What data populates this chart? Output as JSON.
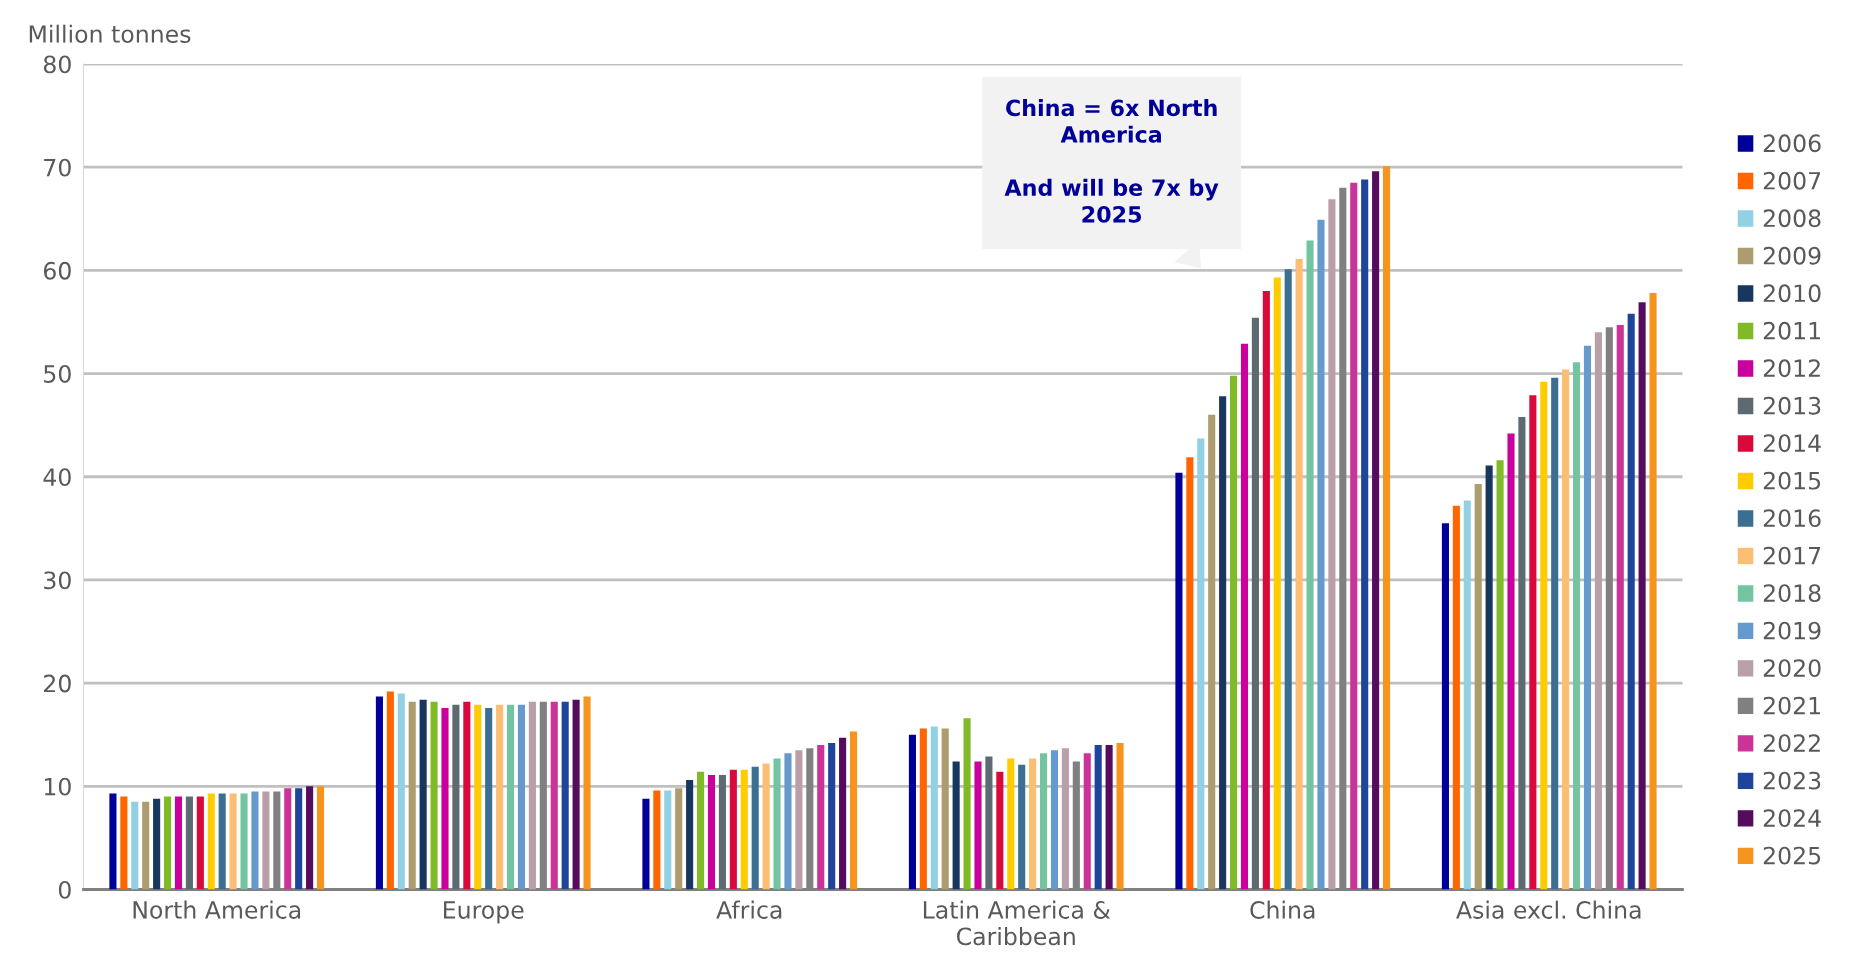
{
  "chart_data": {
    "type": "bar",
    "ylabel": "Million tonnes",
    "categories": [
      "North America",
      "Europe",
      "Africa",
      "Latin America &\nCaribbean",
      "China",
      "Asia excl. China"
    ],
    "series": [
      {
        "name": "2006",
        "color": "#000099",
        "values": [
          9.3,
          18.7,
          8.8,
          15.0,
          40.4,
          35.5
        ]
      },
      {
        "name": "2007",
        "color": "#ff6600",
        "values": [
          9.0,
          19.2,
          9.6,
          15.6,
          41.9,
          37.2
        ]
      },
      {
        "name": "2008",
        "color": "#92d0e3",
        "values": [
          8.5,
          19.0,
          9.6,
          15.8,
          43.7,
          37.7
        ]
      },
      {
        "name": "2009",
        "color": "#ad9d6e",
        "values": [
          8.5,
          18.2,
          9.8,
          15.6,
          46.0,
          39.3
        ]
      },
      {
        "name": "2010",
        "color": "#17375e",
        "values": [
          8.8,
          18.4,
          10.6,
          12.4,
          47.8,
          41.1
        ]
      },
      {
        "name": "2011",
        "color": "#80ba27",
        "values": [
          9.0,
          18.2,
          11.4,
          16.6,
          49.8,
          41.6
        ]
      },
      {
        "name": "2012",
        "color": "#c9009b",
        "values": [
          9.0,
          17.6,
          11.1,
          12.4,
          52.9,
          44.2
        ]
      },
      {
        "name": "2013",
        "color": "#5e6a71",
        "values": [
          9.0,
          17.9,
          11.1,
          12.9,
          55.4,
          45.8
        ]
      },
      {
        "name": "2014",
        "color": "#d90a3b",
        "values": [
          9.0,
          18.2,
          11.6,
          11.4,
          58.0,
          47.9
        ]
      },
      {
        "name": "2015",
        "color": "#ffcc00",
        "values": [
          9.3,
          17.9,
          11.6,
          12.7,
          59.3,
          49.2
        ]
      },
      {
        "name": "2016",
        "color": "#3c6e91",
        "values": [
          9.3,
          17.6,
          11.9,
          12.1,
          60.1,
          49.6
        ]
      },
      {
        "name": "2017",
        "color": "#fbbe73",
        "values": [
          9.3,
          17.9,
          12.2,
          12.7,
          61.1,
          50.4
        ]
      },
      {
        "name": "2018",
        "color": "#73c5a1",
        "values": [
          9.3,
          17.9,
          12.7,
          13.2,
          62.9,
          51.1
        ]
      },
      {
        "name": "2019",
        "color": "#6699cc",
        "values": [
          9.5,
          17.9,
          13.2,
          13.5,
          64.9,
          52.7
        ]
      },
      {
        "name": "2020",
        "color": "#b9a0a8",
        "values": [
          9.5,
          18.2,
          13.5,
          13.7,
          66.9,
          54.0
        ]
      },
      {
        "name": "2021",
        "color": "#808080",
        "values": [
          9.5,
          18.2,
          13.7,
          12.4,
          68.0,
          54.5
        ]
      },
      {
        "name": "2022",
        "color": "#cc3399",
        "values": [
          9.8,
          18.2,
          14.0,
          13.2,
          68.5,
          54.7
        ]
      },
      {
        "name": "2023",
        "color": "#1f449c",
        "values": [
          9.8,
          18.2,
          14.2,
          14.0,
          68.8,
          55.8
        ]
      },
      {
        "name": "2024",
        "color": "#560c5e",
        "values": [
          10.0,
          18.4,
          14.7,
          14.0,
          69.6,
          56.9
        ]
      },
      {
        "name": "2025",
        "color": "#f7941d",
        "values": [
          10.0,
          18.7,
          15.3,
          14.2,
          70.1,
          57.8
        ]
      }
    ],
    "ylim": [
      0,
      80
    ],
    "yticks": [
      0,
      10,
      20,
      30,
      40,
      50,
      60,
      70,
      80
    ],
    "grid": "y",
    "legend": "right",
    "annotations": [
      "China = 6x North America\n\nAnd will be 7x by 2025"
    ]
  }
}
